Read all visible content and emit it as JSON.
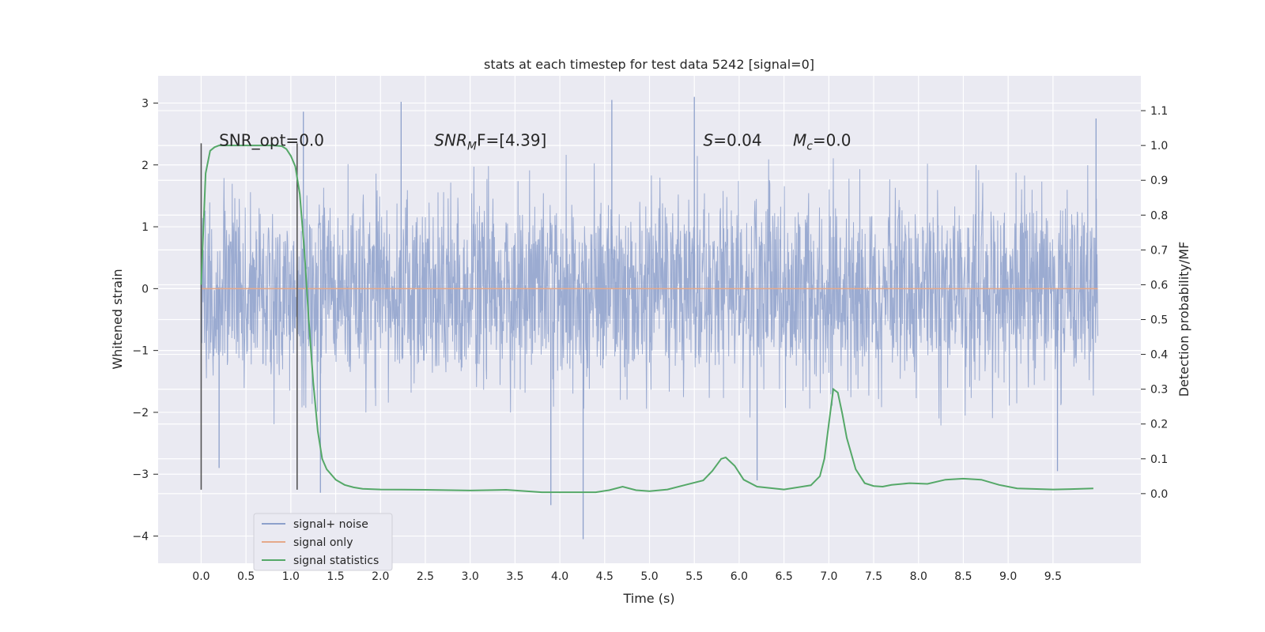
{
  "chart_data": {
    "type": "line",
    "title": "stats at each timestep for test data 5242 [signal=0]",
    "xlabel": "Time (s)",
    "ylabel": "Whitened strain",
    "ylabel_right": "Detection probability/MF",
    "xlim": [
      -0.48,
      10.48
    ],
    "ylim": [
      -4.44,
      3.44
    ],
    "ylim_right": [
      -0.2,
      1.2
    ],
    "x_ticks": [
      0.0,
      0.5,
      1.0,
      1.5,
      2.0,
      2.5,
      3.0,
      3.5,
      4.0,
      4.5,
      5.0,
      5.5,
      6.0,
      6.5,
      7.0,
      7.5,
      8.0,
      8.5,
      9.0,
      9.5
    ],
    "x_tick_labels": [
      "0.0",
      "0.5",
      "1.0",
      "1.5",
      "2.0",
      "2.5",
      "3.0",
      "3.5",
      "4.0",
      "4.5",
      "5.0",
      "5.5",
      "6.0",
      "6.5",
      "7.0",
      "7.5",
      "8.0",
      "8.5",
      "9.0",
      "9.5"
    ],
    "y_ticks": [
      -4,
      -3,
      -2,
      -1,
      0,
      1,
      2,
      3
    ],
    "y_tick_labels": [
      "−4",
      "−3",
      "−2",
      "−1",
      "0",
      "1",
      "2",
      "3"
    ],
    "y_ticks_right": [
      0.0,
      0.1,
      0.2,
      0.3,
      0.4,
      0.5,
      0.6,
      0.7,
      0.8,
      0.9,
      1.0,
      1.1
    ],
    "y_tick_labels_right": [
      "0.0",
      "0.1",
      "0.2",
      "0.3",
      "0.4",
      "0.5",
      "0.6",
      "0.7",
      "0.8",
      "0.9",
      "1.0",
      "1.1"
    ],
    "grid": true,
    "legend_placement": "lower-left",
    "series": [
      {
        "name": "signal+ noise",
        "color": "#8da0cb",
        "axis": "left",
        "x_range": [
          0.0,
          10.0
        ],
        "typical_envelope": [
          -1.4,
          1.4
        ],
        "peaks": [
          {
            "x": 5.5,
            "y": 3.1
          },
          {
            "x": 4.58,
            "y": 3.05
          },
          {
            "x": 1.14,
            "y": 2.86
          },
          {
            "x": 2.23,
            "y": 3.02
          },
          {
            "x": 9.98,
            "y": 2.75
          },
          {
            "x": 4.26,
            "y": -4.05
          },
          {
            "x": 3.9,
            "y": -3.5
          },
          {
            "x": 1.33,
            "y": -3.3
          },
          {
            "x": 0.2,
            "y": -2.9
          },
          {
            "x": 9.55,
            "y": -2.95
          },
          {
            "x": 6.2,
            "y": -3.1
          }
        ]
      },
      {
        "name": "signal only",
        "color": "#e5a98a",
        "axis": "left",
        "x": [
          0.0,
          10.0
        ],
        "y": [
          0.0,
          0.0
        ]
      },
      {
        "name": "signal statistics",
        "color": "#55a868",
        "axis": "right",
        "x": [
          0.0,
          0.05,
          0.1,
          0.15,
          0.2,
          0.3,
          0.4,
          0.5,
          0.6,
          0.7,
          0.8,
          0.9,
          0.95,
          1.0,
          1.05,
          1.1,
          1.15,
          1.2,
          1.25,
          1.3,
          1.35,
          1.4,
          1.5,
          1.6,
          1.7,
          1.8,
          2.0,
          2.5,
          3.0,
          3.4,
          3.8,
          4.0,
          4.4,
          4.55,
          4.7,
          4.85,
          5.0,
          5.2,
          5.4,
          5.6,
          5.7,
          5.8,
          5.85,
          5.95,
          6.05,
          6.2,
          6.5,
          6.8,
          6.9,
          6.95,
          7.0,
          7.05,
          7.1,
          7.15,
          7.2,
          7.3,
          7.4,
          7.5,
          7.6,
          7.7,
          7.9,
          8.1,
          8.3,
          8.5,
          8.7,
          8.9,
          9.1,
          9.5,
          9.7,
          9.95
        ],
        "y": [
          0.6,
          0.92,
          0.985,
          0.995,
          1.0,
          1.0,
          1.0,
          1.0,
          1.0,
          1.0,
          1.0,
          0.998,
          0.99,
          0.97,
          0.94,
          0.86,
          0.7,
          0.5,
          0.32,
          0.18,
          0.1,
          0.07,
          0.04,
          0.025,
          0.018,
          0.014,
          0.012,
          0.011,
          0.009,
          0.011,
          0.004,
          0.004,
          0.004,
          0.01,
          0.02,
          0.01,
          0.007,
          0.012,
          0.025,
          0.038,
          0.065,
          0.1,
          0.104,
          0.08,
          0.04,
          0.02,
          0.012,
          0.024,
          0.05,
          0.1,
          0.2,
          0.3,
          0.29,
          0.23,
          0.16,
          0.07,
          0.03,
          0.022,
          0.02,
          0.025,
          0.03,
          0.028,
          0.04,
          0.043,
          0.04,
          0.025,
          0.015,
          0.012,
          0.013,
          0.015
        ]
      }
    ],
    "vertical_markers": [
      0.0,
      1.07
    ],
    "annotations": [
      {
        "text": "SNR_opt=0.0",
        "x": 0.2,
        "y": 2.4,
        "italic": false
      },
      {
        "text": "SNR",
        "sub": "M",
        "suffix": "F=[4.39]",
        "x": 2.6,
        "y": 2.4,
        "italic": true
      },
      {
        "text": "S",
        "suffix": "=0.04",
        "x": 5.6,
        "y": 2.4,
        "italic": true
      },
      {
        "text": "M",
        "sub": "c",
        "suffix": "=0.0",
        "x": 6.6,
        "y": 2.4,
        "italic": true
      }
    ]
  }
}
